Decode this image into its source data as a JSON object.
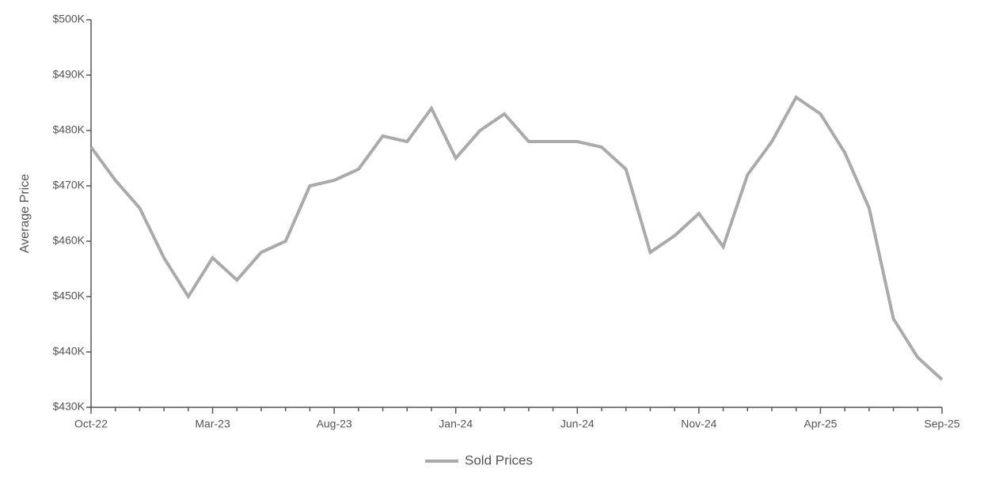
{
  "chart_data": {
    "type": "line",
    "y_axis_label": "Average Price",
    "categories": [
      "Oct-22",
      null,
      null,
      null,
      null,
      "Mar-23",
      null,
      null,
      null,
      null,
      "Aug-23",
      null,
      null,
      null,
      null,
      "Jan-24",
      null,
      null,
      null,
      null,
      "Jun-24",
      null,
      null,
      null,
      null,
      "Nov-24",
      null,
      null,
      null,
      null,
      "Apr-25",
      null,
      null,
      null,
      null,
      "Sep-25"
    ],
    "series": [
      {
        "name": "Sold Prices",
        "color": "#aaaaaa",
        "values": [
          477000,
          471000,
          466000,
          457000,
          450000,
          457000,
          453000,
          458000,
          460000,
          470000,
          471000,
          473000,
          479000,
          478000,
          484000,
          475000,
          480000,
          483000,
          478000,
          478000,
          478000,
          477000,
          473000,
          458000,
          461000,
          465000,
          459000,
          472000,
          478000,
          486000,
          483000,
          476000,
          466000,
          446000,
          439000,
          435000
        ]
      }
    ],
    "ylim": [
      430000,
      500000
    ],
    "yticks": [
      {
        "value": 430000,
        "label": "$430K"
      },
      {
        "value": 440000,
        "label": "$440K"
      },
      {
        "value": 450000,
        "label": "$450K"
      },
      {
        "value": 460000,
        "label": "$460K"
      },
      {
        "value": 470000,
        "label": "$470K"
      },
      {
        "value": 480000,
        "label": "$480K"
      },
      {
        "value": 490000,
        "label": "$490K"
      },
      {
        "value": 500000,
        "label": "$500K"
      }
    ],
    "grid": false,
    "legend": "bottom"
  }
}
